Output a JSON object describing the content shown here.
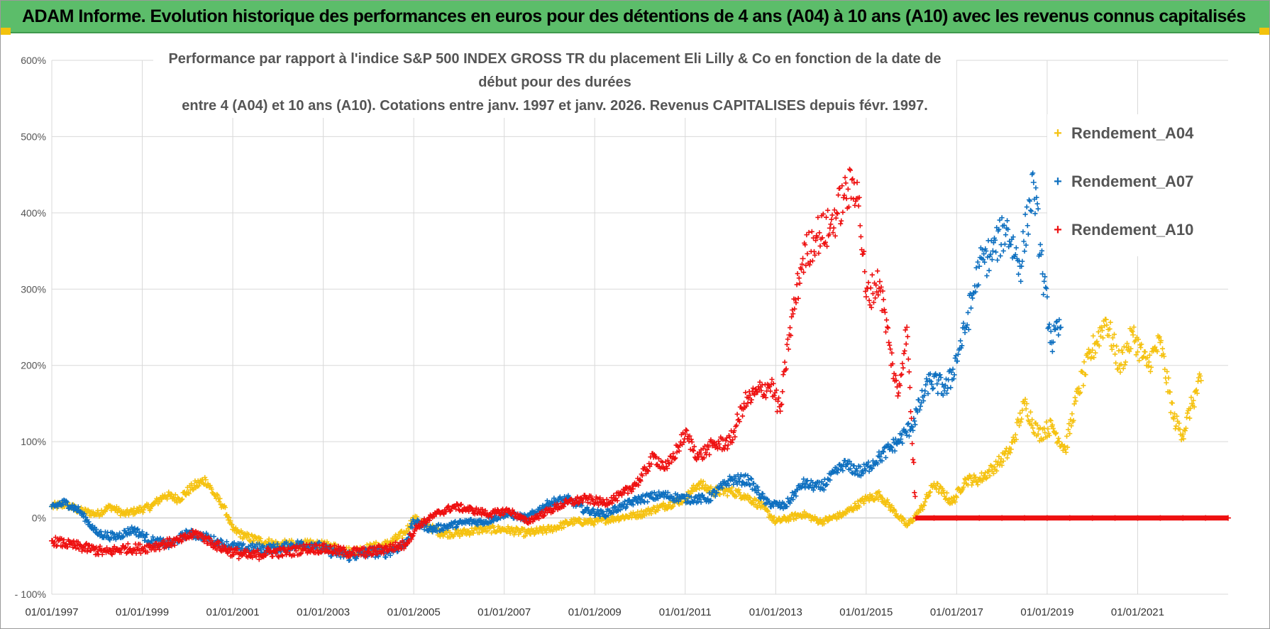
{
  "banner": {
    "title": "ADAM Informe. Evolution historique des performances en euros pour des détentions de 4 ans (A04) à 10 ans (A10) avec les revenus connus capitalisés"
  },
  "colors": {
    "banner_bg": "#5cbd6a",
    "accent": "#f3c20c",
    "A04": "#f5c211",
    "A07": "#0f70c0",
    "A10": "#ee1111",
    "grid": "#d9d9d9",
    "axis_text": "#555555"
  },
  "chart_data": {
    "type": "scatter",
    "title_line1": "Performance par rapport à l'indice S&P 500 INDEX GROSS TR  du placement Eli Lilly & Co en fonction de la date de début pour des durées",
    "title_line2": "entre 4 (A04) et 10 ans (A10).  Cotations entre janv. 1997 et janv. 2026. Revenus CAPITALISES depuis févr. 1997.",
    "xlabel": "",
    "ylabel": "",
    "x_range": [
      1997.0,
      2023.0
    ],
    "ylim": [
      -100,
      600
    ],
    "y_ticks": [
      {
        "value": -100,
        "label": "- 100%"
      },
      {
        "value": 0,
        "label": "0%"
      },
      {
        "value": 100,
        "label": "100%"
      },
      {
        "value": 200,
        "label": "200%"
      },
      {
        "value": 300,
        "label": "300%"
      },
      {
        "value": 400,
        "label": "400%"
      },
      {
        "value": 500,
        "label": "500%"
      },
      {
        "value": 600,
        "label": "600%"
      }
    ],
    "x_ticks": [
      {
        "value": 1997,
        "label": "01/01/1997"
      },
      {
        "value": 1999,
        "label": "01/01/1999"
      },
      {
        "value": 2001,
        "label": "01/01/2001"
      },
      {
        "value": 2003,
        "label": "01/01/2003"
      },
      {
        "value": 2005,
        "label": "01/01/2005"
      },
      {
        "value": 2007,
        "label": "01/01/2007"
      },
      {
        "value": 2009,
        "label": "01/01/2009"
      },
      {
        "value": 2011,
        "label": "01/01/2011"
      },
      {
        "value": 2013,
        "label": "01/01/2013"
      },
      {
        "value": 2015,
        "label": "01/01/2015"
      },
      {
        "value": 2017,
        "label": "01/01/2017"
      },
      {
        "value": 2019,
        "label": "01/01/2019"
      },
      {
        "value": 2021,
        "label": "01/01/2021"
      }
    ],
    "grid": true,
    "legend_position": "top-right",
    "series": [
      {
        "key": "A04",
        "name": "Rendement_A04",
        "color": "#f5c211",
        "points": [
          [
            1997.0,
            15
          ],
          [
            1997.3,
            18
          ],
          [
            1997.6,
            10
          ],
          [
            1998.0,
            5
          ],
          [
            1998.3,
            15
          ],
          [
            1998.6,
            5
          ],
          [
            1998.9,
            10
          ],
          [
            1999.2,
            15
          ],
          [
            1999.5,
            30
          ],
          [
            1999.8,
            25
          ],
          [
            2000.1,
            40
          ],
          [
            2000.4,
            50
          ],
          [
            2000.6,
            30
          ],
          [
            2000.8,
            15
          ],
          [
            2001.0,
            -15
          ],
          [
            2001.3,
            -25
          ],
          [
            2001.6,
            -30
          ],
          [
            2002.0,
            -35
          ],
          [
            2002.4,
            -35
          ],
          [
            2002.8,
            -35
          ],
          [
            2003.2,
            -38
          ],
          [
            2003.6,
            -45
          ],
          [
            2004.0,
            -40
          ],
          [
            2004.4,
            -35
          ],
          [
            2004.8,
            -20
          ],
          [
            2005.0,
            0
          ],
          [
            2005.3,
            -10
          ],
          [
            2005.6,
            -20
          ],
          [
            2006.0,
            -20
          ],
          [
            2006.5,
            -15
          ],
          [
            2007.0,
            -15
          ],
          [
            2007.5,
            -20
          ],
          [
            2008.0,
            -15
          ],
          [
            2008.5,
            -5
          ],
          [
            2009.0,
            -5
          ],
          [
            2009.5,
            0
          ],
          [
            2010.0,
            5
          ],
          [
            2010.5,
            15
          ],
          [
            2011.0,
            25
          ],
          [
            2011.3,
            45
          ],
          [
            2011.6,
            35
          ],
          [
            2012.0,
            35
          ],
          [
            2012.3,
            30
          ],
          [
            2012.7,
            15
          ],
          [
            2013.0,
            -5
          ],
          [
            2013.3,
            0
          ],
          [
            2013.6,
            5
          ],
          [
            2014.0,
            -5
          ],
          [
            2014.5,
            5
          ],
          [
            2015.0,
            25
          ],
          [
            2015.3,
            30
          ],
          [
            2015.6,
            10
          ],
          [
            2015.9,
            -10
          ],
          [
            2016.2,
            10
          ],
          [
            2016.5,
            45
          ],
          [
            2016.9,
            20
          ],
          [
            2017.2,
            50
          ],
          [
            2017.5,
            50
          ],
          [
            2017.9,
            70
          ],
          [
            2018.2,
            90
          ],
          [
            2018.5,
            150
          ],
          [
            2018.8,
            110
          ],
          [
            2019.1,
            120
          ],
          [
            2019.4,
            90
          ],
          [
            2019.7,
            170
          ],
          [
            2020.0,
            220
          ],
          [
            2020.3,
            260
          ],
          [
            2020.6,
            200
          ],
          [
            2020.9,
            240
          ],
          [
            2021.2,
            200
          ],
          [
            2021.5,
            230
          ],
          [
            2021.8,
            130
          ],
          [
            2022.0,
            110
          ],
          [
            2022.2,
            150
          ],
          [
            2022.4,
            180
          ]
        ]
      },
      {
        "key": "A07",
        "name": "Rendement_A07",
        "color": "#0f70c0",
        "points": [
          [
            1997.0,
            15
          ],
          [
            1997.3,
            20
          ],
          [
            1997.6,
            10
          ],
          [
            1998.0,
            -20
          ],
          [
            1998.4,
            -25
          ],
          [
            1998.8,
            -15
          ],
          [
            1999.2,
            -30
          ],
          [
            1999.6,
            -35
          ],
          [
            2000.0,
            -20
          ],
          [
            2000.4,
            -25
          ],
          [
            2000.8,
            -35
          ],
          [
            2001.2,
            -40
          ],
          [
            2001.6,
            -40
          ],
          [
            2002.0,
            -40
          ],
          [
            2002.4,
            -35
          ],
          [
            2002.8,
            -35
          ],
          [
            2003.2,
            -45
          ],
          [
            2003.6,
            -50
          ],
          [
            2004.0,
            -45
          ],
          [
            2004.4,
            -45
          ],
          [
            2004.8,
            -35
          ],
          [
            2005.0,
            -5
          ],
          [
            2005.4,
            -15
          ],
          [
            2005.8,
            -10
          ],
          [
            2006.2,
            -5
          ],
          [
            2006.6,
            -5
          ],
          [
            2007.0,
            5
          ],
          [
            2007.5,
            0
          ],
          [
            2008.0,
            20
          ],
          [
            2008.4,
            25
          ],
          [
            2008.8,
            10
          ],
          [
            2009.2,
            5
          ],
          [
            2009.6,
            15
          ],
          [
            2010.0,
            25
          ],
          [
            2010.5,
            30
          ],
          [
            2011.0,
            25
          ],
          [
            2011.5,
            25
          ],
          [
            2012.0,
            50
          ],
          [
            2012.4,
            50
          ],
          [
            2012.8,
            20
          ],
          [
            2013.2,
            15
          ],
          [
            2013.6,
            45
          ],
          [
            2014.0,
            40
          ],
          [
            2014.5,
            70
          ],
          [
            2014.9,
            60
          ],
          [
            2015.3,
            80
          ],
          [
            2015.7,
            100
          ],
          [
            2016.0,
            120
          ],
          [
            2016.4,
            180
          ],
          [
            2016.8,
            170
          ],
          [
            2017.2,
            250
          ],
          [
            2017.5,
            330
          ],
          [
            2017.8,
            350
          ],
          [
            2018.1,
            380
          ],
          [
            2018.4,
            330
          ],
          [
            2018.7,
            440
          ],
          [
            2018.9,
            320
          ],
          [
            2019.1,
            230
          ],
          [
            2019.3,
            250
          ]
        ]
      },
      {
        "key": "A10",
        "name": "Rendement_A10",
        "color": "#ee1111",
        "points": [
          [
            1997.0,
            -30
          ],
          [
            1997.4,
            -35
          ],
          [
            1997.8,
            -40
          ],
          [
            1998.2,
            -45
          ],
          [
            1998.6,
            -40
          ],
          [
            1999.0,
            -40
          ],
          [
            1999.4,
            -35
          ],
          [
            1999.8,
            -30
          ],
          [
            2000.2,
            -20
          ],
          [
            2000.6,
            -35
          ],
          [
            2001.0,
            -45
          ],
          [
            2001.4,
            -50
          ],
          [
            2001.8,
            -45
          ],
          [
            2002.2,
            -45
          ],
          [
            2002.6,
            -40
          ],
          [
            2003.0,
            -40
          ],
          [
            2003.5,
            -45
          ],
          [
            2004.0,
            -45
          ],
          [
            2004.4,
            -40
          ],
          [
            2004.8,
            -35
          ],
          [
            2005.1,
            -10
          ],
          [
            2005.5,
            5
          ],
          [
            2005.9,
            15
          ],
          [
            2006.3,
            10
          ],
          [
            2006.7,
            5
          ],
          [
            2007.1,
            10
          ],
          [
            2007.5,
            -5
          ],
          [
            2008.0,
            10
          ],
          [
            2008.4,
            20
          ],
          [
            2008.8,
            25
          ],
          [
            2009.2,
            20
          ],
          [
            2009.6,
            30
          ],
          [
            2010.0,
            50
          ],
          [
            2010.3,
            80
          ],
          [
            2010.6,
            65
          ],
          [
            2011.0,
            110
          ],
          [
            2011.3,
            80
          ],
          [
            2011.6,
            95
          ],
          [
            2012.0,
            100
          ],
          [
            2012.3,
            150
          ],
          [
            2012.6,
            165
          ],
          [
            2012.9,
            175
          ],
          [
            2013.1,
            140
          ],
          [
            2013.3,
            240
          ],
          [
            2013.6,
            340
          ],
          [
            2013.9,
            370
          ],
          [
            2014.2,
            380
          ],
          [
            2014.5,
            420
          ],
          [
            2014.8,
            440
          ],
          [
            2015.0,
            290
          ],
          [
            2015.3,
            310
          ],
          [
            2015.5,
            230
          ],
          [
            2015.7,
            160
          ],
          [
            2015.9,
            250
          ],
          [
            2016.1,
            0
          ],
          [
            2016.5,
            0
          ],
          [
            2017.0,
            0
          ],
          [
            2017.5,
            0
          ],
          [
            2018.0,
            0
          ],
          [
            2018.5,
            0
          ],
          [
            2019.0,
            0
          ],
          [
            2019.5,
            0
          ],
          [
            2020.0,
            0
          ],
          [
            2020.5,
            0
          ],
          [
            2021.0,
            0
          ],
          [
            2021.5,
            0
          ],
          [
            2022.0,
            0
          ],
          [
            2022.5,
            0
          ],
          [
            2023.0,
            0
          ]
        ]
      }
    ]
  }
}
